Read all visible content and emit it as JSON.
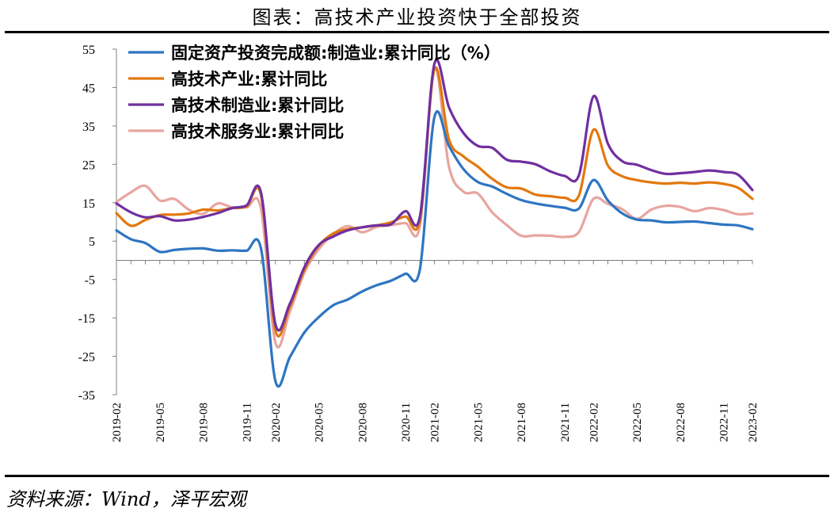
{
  "title": "图表：高技术产业投资快于全部投资",
  "source": "资料来源：Wind，泽平宏观",
  "chart_data": {
    "type": "line",
    "ylim": [
      -35,
      55
    ],
    "yticks": [
      55,
      45,
      35,
      25,
      15,
      5,
      -5,
      -15,
      -25,
      -35
    ],
    "x": [
      "2019-02",
      "2019-03",
      "2019-04",
      "2019-05",
      "2019-06",
      "2019-07",
      "2019-08",
      "2019-09",
      "2019-10",
      "2019-11",
      "2019-12",
      "2020-02",
      "2020-03",
      "2020-04",
      "2020-05",
      "2020-06",
      "2020-07",
      "2020-08",
      "2020-09",
      "2020-10",
      "2020-11",
      "2020-12",
      "2021-02",
      "2021-03",
      "2021-04",
      "2021-05",
      "2021-06",
      "2021-07",
      "2021-08",
      "2021-09",
      "2021-10",
      "2021-11",
      "2021-12",
      "2022-02",
      "2022-03",
      "2022-04",
      "2022-05",
      "2022-06",
      "2022-07",
      "2022-08",
      "2022-09",
      "2022-10",
      "2022-11",
      "2022-12",
      "2023-02"
    ],
    "xtick_labels": [
      "2019-02",
      "2019-05",
      "2019-08",
      "2019-11",
      "2020-02",
      "2020-05",
      "2020-08",
      "2020-11",
      "2021-02",
      "2021-05",
      "2021-08",
      "2021-11",
      "2022-02",
      "2022-05",
      "2022-08",
      "2022-11",
      "2023-02"
    ],
    "grid": false,
    "legend_position": "top-left",
    "series": [
      {
        "name": "固定资产投资完成额:制造业:累计同比（%）",
        "color": "#2E75C2",
        "values": [
          7.8,
          5.5,
          4.5,
          2.2,
          2.7,
          3.0,
          3.1,
          2.5,
          2.6,
          2.5,
          3.1,
          -31.5,
          -25.2,
          -18.8,
          -14.8,
          -11.7,
          -10.2,
          -8.1,
          -6.5,
          -5.3,
          -3.5,
          -2.2,
          37.3,
          29.8,
          23.8,
          20.4,
          19.2,
          17.3,
          15.7,
          14.8,
          14.2,
          13.7,
          13.5,
          20.9,
          15.6,
          12.2,
          10.6,
          10.4,
          9.9,
          10.0,
          10.1,
          9.7,
          9.3,
          9.1,
          8.1
        ]
      },
      {
        "name": "高技术产业:累计同比",
        "color": "#E2780E",
        "values": [
          12.3,
          9.0,
          10.5,
          11.8,
          11.9,
          12.2,
          13.2,
          13.0,
          13.6,
          14.0,
          17.0,
          -18.3,
          -12.1,
          -2.5,
          3.8,
          7.0,
          8.1,
          8.6,
          9.1,
          9.9,
          11.4,
          10.6,
          49.8,
          31.5,
          27.1,
          24.4,
          21.2,
          19.0,
          18.7,
          17.1,
          16.7,
          16.3,
          16.9,
          34.0,
          24.7,
          21.9,
          20.9,
          20.3,
          20.0,
          20.2,
          20.0,
          20.3,
          19.9,
          18.9,
          16.0
        ]
      },
      {
        "name": "高技术制造业:累计同比",
        "color": "#7030A0",
        "values": [
          14.8,
          12.5,
          11.2,
          11.5,
          10.4,
          10.6,
          11.3,
          12.3,
          13.6,
          14.3,
          17.7,
          -16.7,
          -11.3,
          -1.8,
          4.0,
          6.2,
          7.8,
          8.6,
          9.1,
          9.4,
          12.8,
          11.5,
          51.2,
          39.9,
          33.2,
          29.8,
          29.3,
          26.2,
          25.7,
          25.0,
          23.2,
          22.0,
          22.2,
          42.7,
          30.4,
          25.8,
          24.9,
          23.5,
          22.5,
          22.7,
          23.0,
          23.4,
          23.0,
          22.3,
          18.3
        ]
      },
      {
        "name": "高技术服务业:累计同比",
        "color": "#E7A5A0",
        "values": [
          15.2,
          17.7,
          19.4,
          15.6,
          16.0,
          13.2,
          12.1,
          14.8,
          13.8,
          13.8,
          13.5,
          -21.5,
          -13.3,
          -3.2,
          2.9,
          6.8,
          8.9,
          7.3,
          8.7,
          9.2,
          9.7,
          9.1,
          50.1,
          24.5,
          17.9,
          17.4,
          12.5,
          9.2,
          6.4,
          6.5,
          6.4,
          6.1,
          7.4,
          16.0,
          14.7,
          13.3,
          10.8,
          13.2,
          14.2,
          13.9,
          12.8,
          13.6,
          13.1,
          12.0,
          12.2
        ]
      }
    ]
  }
}
